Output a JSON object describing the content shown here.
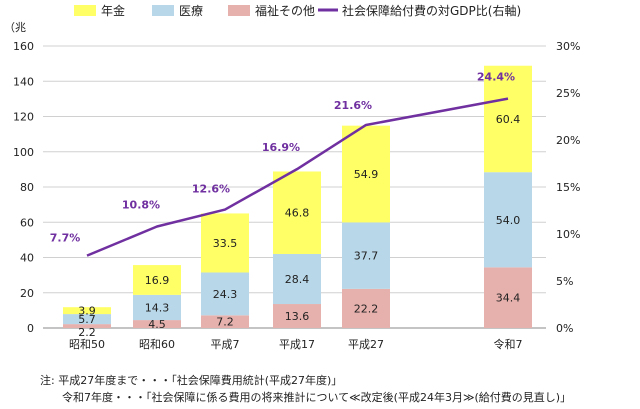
{
  "chart_data": {
    "type": "bar",
    "stacked": true,
    "categories": [
      "昭和50",
      "昭和60",
      "平成7",
      "平成17",
      "平成27",
      "令和7"
    ],
    "series": [
      {
        "name": "福祉その他",
        "values": [
          2.2,
          4.5,
          7.2,
          13.6,
          22.2,
          34.4
        ],
        "color": "#e6b1ad"
      },
      {
        "name": "医療",
        "values": [
          5.7,
          14.3,
          24.3,
          28.4,
          37.7,
          54.0
        ],
        "color": "#b8d7e8"
      },
      {
        "name": "年金",
        "values": [
          3.9,
          16.9,
          33.5,
          46.8,
          54.9,
          60.4
        ],
        "color": "#ffff66"
      }
    ],
    "line_series": {
      "name": "社会保障給付費の対GDP比(右軸)",
      "values": [
        7.7,
        10.8,
        12.6,
        16.9,
        21.6,
        24.4
      ],
      "labels": [
        "7.7%",
        "10.8%",
        "12.6%",
        "16.9%",
        "21.6%",
        "24.4%"
      ],
      "color": "#7030a0",
      "axis": "right"
    },
    "value_labels": [
      [
        "2.2",
        "5.7",
        "3.9"
      ],
      [
        "4.5",
        "14.3",
        "16.9"
      ],
      [
        "7.2",
        "24.3",
        "33.5"
      ],
      [
        "13.6",
        "28.4",
        "46.8"
      ],
      [
        "22.2",
        "37.7",
        "54.9"
      ],
      [
        "34.4",
        "54.0",
        "60.4"
      ]
    ],
    "ylabel": "（兆",
    "ylim": [
      0,
      160
    ],
    "yticks": [
      "0",
      "20",
      "40",
      "60",
      "80",
      "100",
      "120",
      "140",
      "160"
    ],
    "y2lim": [
      0,
      30
    ],
    "y2ticks": [
      "0%",
      "5%",
      "10%",
      "15%",
      "20%",
      "25%",
      "30%"
    ],
    "legend": [
      {
        "label": "年金",
        "kind": "box",
        "color": "#ffff66"
      },
      {
        "label": "医療",
        "kind": "box",
        "color": "#b8d7e8"
      },
      {
        "label": "福祉その他",
        "kind": "box",
        "color": "#e6b1ad"
      },
      {
        "label": "社会保障給付費の対GDP比(右軸)",
        "kind": "line",
        "color": "#7030a0"
      }
    ],
    "legend_position": "top",
    "grid": true
  },
  "notes": {
    "line1": "注: 平成27年度まで・・・「社会保障費用統計(平成27年度)」",
    "line2": "令和7年度・・・「社会保障に係る費用の将来推計について≪改定後(平成24年3月≫(給付費の見直し)」"
  }
}
